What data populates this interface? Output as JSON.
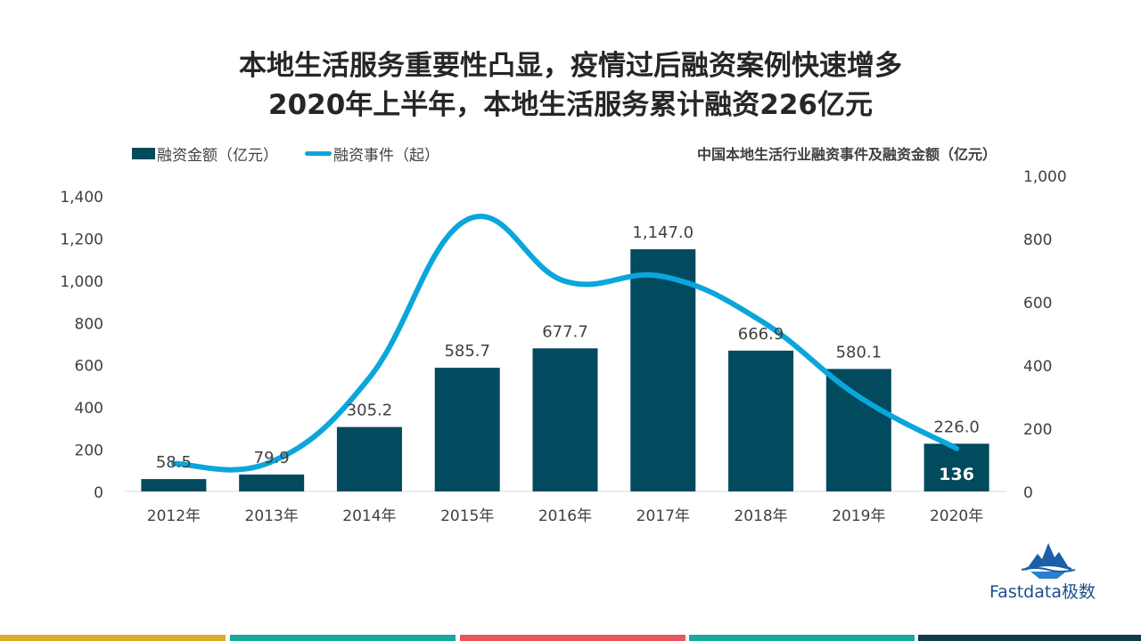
{
  "title_line1": "本地生活服务重要性凸显，疫情过后融资案例快速增多",
  "title_line2": "2020年上半年，本地生活服务累计融资226亿元",
  "legend": {
    "bar_label": "融资金额（亿元）",
    "line_label": "融资事件（起）"
  },
  "subtitle": "中国本地生活行业融资事件及融资金额（亿元）",
  "brand": "Fastdata极数",
  "colors": {
    "bar": "#024a5e",
    "line": "#0aa6dc",
    "axis_text": "#404040",
    "stripe_1": "#dcac2c",
    "stripe_2": "#17a8a0",
    "stripe_3": "#e8575a",
    "stripe_4": "#17a8a0",
    "stripe_5": "#0f3a4a"
  },
  "chart_data": {
    "type": "bar",
    "title": "中国本地生活行业融资事件及融资金额（亿元）",
    "categories": [
      "2012年",
      "2013年",
      "2014年",
      "2015年",
      "2016年",
      "2017年",
      "2018年",
      "2019年",
      "2020年"
    ],
    "series": [
      {
        "name": "融资金额（亿元）",
        "type": "bar",
        "axis": "left",
        "values": [
          58.5,
          79.9,
          305.2,
          585.7,
          677.7,
          1147.0,
          666.9,
          580.1,
          226.0
        ],
        "labels": [
          "58.5",
          "79.9",
          "305.2",
          "585.7",
          "677.7",
          "1,147.0",
          "666.9",
          "580.1",
          "226.0"
        ]
      },
      {
        "name": "融资事件（起）",
        "type": "line",
        "axis": "right",
        "values": [
          88,
          94,
          360,
          860,
          665,
          680,
          540,
          300,
          136
        ],
        "point_labels": [
          "",
          "",
          "",
          "",
          "",
          "",
          "",
          "",
          "136"
        ]
      }
    ],
    "y_left": {
      "min": 0,
      "max": 1400,
      "ticks": [
        0,
        200,
        400,
        600,
        800,
        1000,
        1200,
        1400
      ],
      "tick_labels": [
        "0",
        "200",
        "400",
        "600",
        "800",
        "1,000",
        "1,200",
        "1,400"
      ]
    },
    "y_right": {
      "min": 0,
      "max": 1000,
      "ticks": [
        0,
        200,
        400,
        600,
        800,
        1000
      ],
      "tick_labels": [
        "0",
        "200",
        "400",
        "600",
        "800",
        "1,000"
      ]
    },
    "grid": false,
    "legend_position": "top-left"
  }
}
